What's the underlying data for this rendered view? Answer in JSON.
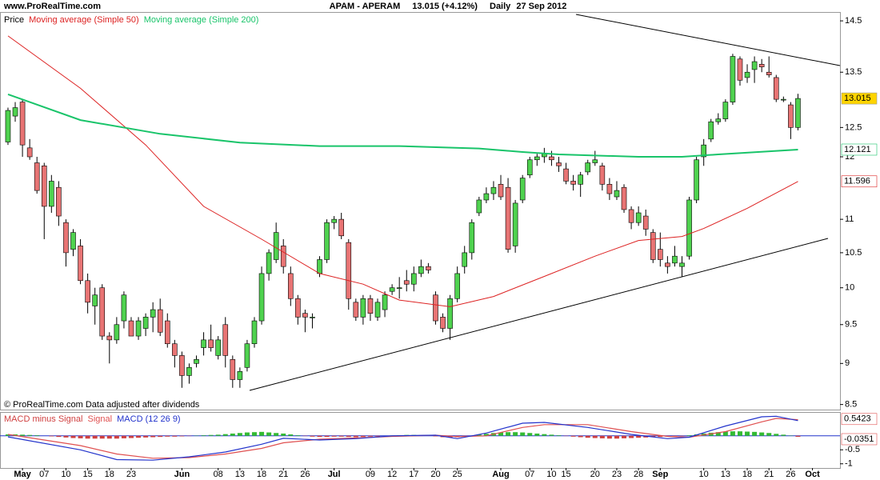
{
  "header": {
    "site": "www.ProRealTime.com",
    "title": "APAM - APERAM",
    "quote": "13.015 (+4.12%)",
    "period": "Daily",
    "date": "27 Sep 2012"
  },
  "footer": "© ProRealTime.com  Data adjusted after dividends",
  "chart_data": [
    {
      "type": "candlestick",
      "legend_label": "Price",
      "log_scale": true,
      "up_color": "#4fd24f",
      "down_color": "#e87474",
      "xlim": [
        -1.1,
        114.8
      ],
      "ylim": [
        8.44,
        14.68
      ],
      "yticks": [
        8.5,
        9,
        9.5,
        10,
        10.5,
        11,
        12,
        12.5,
        13.5,
        14.5
      ],
      "candles": [
        [
          12.25,
          12.85,
          12.2,
          12.8
        ],
        [
          12.7,
          12.95,
          12.6,
          12.85
        ],
        [
          12.95,
          13.0,
          12.0,
          12.2
        ],
        [
          12.15,
          12.3,
          11.95,
          12.0
        ],
        [
          11.9,
          12.0,
          11.4,
          11.45
        ],
        [
          11.85,
          11.9,
          10.7,
          11.2
        ],
        [
          11.2,
          11.7,
          11.1,
          11.6
        ],
        [
          11.5,
          11.6,
          10.9,
          11.05
        ],
        [
          10.95,
          11.0,
          10.3,
          10.5
        ],
        [
          10.55,
          10.85,
          10.45,
          10.8
        ],
        [
          10.6,
          10.7,
          10.05,
          10.1
        ],
        [
          10.1,
          10.2,
          9.65,
          9.8
        ],
        [
          9.75,
          10.0,
          9.5,
          9.9
        ],
        [
          10.0,
          10.05,
          9.3,
          9.35
        ],
        [
          9.35,
          9.4,
          9.0,
          9.3
        ],
        [
          9.3,
          9.6,
          9.25,
          9.5
        ],
        [
          9.55,
          9.95,
          9.45,
          9.9
        ],
        [
          9.55,
          9.6,
          9.35,
          9.35
        ],
        [
          9.35,
          9.6,
          9.3,
          9.55
        ],
        [
          9.45,
          9.65,
          9.35,
          9.6
        ],
        [
          9.6,
          9.8,
          9.4,
          9.7
        ],
        [
          9.7,
          9.85,
          9.35,
          9.4
        ],
        [
          9.55,
          9.65,
          9.2,
          9.25
        ],
        [
          9.25,
          9.3,
          8.95,
          9.1
        ],
        [
          9.1,
          9.15,
          8.7,
          8.85
        ],
        [
          8.85,
          9.0,
          8.75,
          8.95
        ],
        [
          9.0,
          9.1,
          8.95,
          9.05
        ],
        [
          9.2,
          9.4,
          9.1,
          9.3
        ],
        [
          9.3,
          9.5,
          9.15,
          9.2
        ],
        [
          9.1,
          9.35,
          9.05,
          9.3
        ],
        [
          9.5,
          9.6,
          8.95,
          9.1
        ],
        [
          9.05,
          9.1,
          8.7,
          8.8
        ],
        [
          8.8,
          8.95,
          8.7,
          8.9
        ],
        [
          8.95,
          9.3,
          8.9,
          9.25
        ],
        [
          9.25,
          9.6,
          9.2,
          9.55
        ],
        [
          9.55,
          10.3,
          9.5,
          10.2
        ],
        [
          10.2,
          10.55,
          10.1,
          10.5
        ],
        [
          10.4,
          10.95,
          10.35,
          10.8
        ],
        [
          10.6,
          10.7,
          10.2,
          10.3
        ],
        [
          10.2,
          10.3,
          9.75,
          9.85
        ],
        [
          9.85,
          9.9,
          9.5,
          9.6
        ],
        [
          9.65,
          9.7,
          9.4,
          9.6
        ],
        [
          9.6,
          9.65,
          9.45,
          9.6
        ],
        [
          10.2,
          10.45,
          10.15,
          10.4
        ],
        [
          10.4,
          11.0,
          10.35,
          10.95
        ],
        [
          10.95,
          11.05,
          10.85,
          11.0
        ],
        [
          11.0,
          11.1,
          10.7,
          10.75
        ],
        [
          10.65,
          10.7,
          9.7,
          9.85
        ],
        [
          9.8,
          9.85,
          9.55,
          9.6
        ],
        [
          9.6,
          9.9,
          9.5,
          9.85
        ],
        [
          9.85,
          9.9,
          9.55,
          9.65
        ],
        [
          9.6,
          9.85,
          9.55,
          9.8
        ],
        [
          9.7,
          9.95,
          9.6,
          9.9
        ],
        [
          9.95,
          10.05,
          9.9,
          10.0
        ],
        [
          10.0,
          10.15,
          9.85,
          10.0
        ],
        [
          10.1,
          10.25,
          9.95,
          10.05
        ],
        [
          10.05,
          10.3,
          9.95,
          10.2
        ],
        [
          10.2,
          10.4,
          10.15,
          10.3
        ],
        [
          10.3,
          10.35,
          10.2,
          10.25
        ],
        [
          9.9,
          9.95,
          9.5,
          9.55
        ],
        [
          9.6,
          9.65,
          9.4,
          9.45
        ],
        [
          9.45,
          9.9,
          9.3,
          9.85
        ],
        [
          9.85,
          10.3,
          9.8,
          10.2
        ],
        [
          10.3,
          10.6,
          10.2,
          10.5
        ],
        [
          10.5,
          11.0,
          10.4,
          10.95
        ],
        [
          11.1,
          11.35,
          11.05,
          11.3
        ],
        [
          11.3,
          11.5,
          11.25,
          11.4
        ],
        [
          11.4,
          11.6,
          11.3,
          11.5
        ],
        [
          11.55,
          11.7,
          11.3,
          11.35
        ],
        [
          11.5,
          11.65,
          10.5,
          10.55
        ],
        [
          10.6,
          11.3,
          10.5,
          11.25
        ],
        [
          11.3,
          11.7,
          11.25,
          11.65
        ],
        [
          11.7,
          12.0,
          11.65,
          11.95
        ],
        [
          11.95,
          12.05,
          11.85,
          12.0
        ],
        [
          12.0,
          12.15,
          11.9,
          12.05
        ],
        [
          12.0,
          12.1,
          11.85,
          11.95
        ],
        [
          11.9,
          12.0,
          11.75,
          11.85
        ],
        [
          11.8,
          11.9,
          11.55,
          11.6
        ],
        [
          11.6,
          11.7,
          11.45,
          11.55
        ],
        [
          11.55,
          11.75,
          11.35,
          11.7
        ],
        [
          11.75,
          11.95,
          11.7,
          11.9
        ],
        [
          11.9,
          12.1,
          11.85,
          11.95
        ],
        [
          11.85,
          11.9,
          11.45,
          11.55
        ],
        [
          11.55,
          11.65,
          11.3,
          11.4
        ],
        [
          11.35,
          11.6,
          11.3,
          11.45
        ],
        [
          11.5,
          11.55,
          11.1,
          11.15
        ],
        [
          11.15,
          11.2,
          10.85,
          10.95
        ],
        [
          10.95,
          11.2,
          10.9,
          11.1
        ],
        [
          11.05,
          11.15,
          10.75,
          10.85
        ],
        [
          10.8,
          10.85,
          10.35,
          10.4
        ],
        [
          10.55,
          10.8,
          10.3,
          10.4
        ],
        [
          10.35,
          10.45,
          10.2,
          10.3
        ],
        [
          10.35,
          10.6,
          10.3,
          10.45
        ],
        [
          10.3,
          10.45,
          10.15,
          10.35
        ],
        [
          10.45,
          11.35,
          10.4,
          11.3
        ],
        [
          11.3,
          12.0,
          11.25,
          11.95
        ],
        [
          12.0,
          12.3,
          11.85,
          12.2
        ],
        [
          12.3,
          12.65,
          12.25,
          12.6
        ],
        [
          12.6,
          12.75,
          12.55,
          12.65
        ],
        [
          12.65,
          13.0,
          12.6,
          12.95
        ],
        [
          12.95,
          13.85,
          12.9,
          13.8
        ],
        [
          13.75,
          13.8,
          13.25,
          13.35
        ],
        [
          13.4,
          13.65,
          13.3,
          13.5
        ],
        [
          13.55,
          13.8,
          13.3,
          13.7
        ],
        [
          13.65,
          13.75,
          13.5,
          13.6
        ],
        [
          13.5,
          13.8,
          13.4,
          13.45
        ],
        [
          13.4,
          13.45,
          12.95,
          13.0
        ],
        [
          13.0,
          13.05,
          12.95,
          13.0
        ],
        [
          12.9,
          12.95,
          12.3,
          12.5
        ],
        [
          12.5,
          13.1,
          12.45,
          13.015
        ]
      ],
      "series": [
        {
          "name": "Moving average (Simple 50)",
          "color": "#dd2222",
          "x": [
            0,
            10,
            19,
            27,
            35,
            43,
            49,
            54,
            61,
            67,
            74,
            81,
            87,
            93,
            96,
            102,
            109
          ],
          "values": [
            14.2,
            13.2,
            12.2,
            11.2,
            10.7,
            10.2,
            10.05,
            9.83,
            9.74,
            9.88,
            10.16,
            10.45,
            10.68,
            10.74,
            10.86,
            11.17,
            11.596
          ]
        },
        {
          "name": "Moving average (Simple 200)",
          "color": "#19c46a",
          "x": [
            0,
            10,
            21,
            32,
            43,
            54,
            65,
            71,
            76,
            87,
            93,
            98,
            109
          ],
          "values": [
            13.09,
            12.63,
            12.39,
            12.24,
            12.18,
            12.18,
            12.14,
            12.08,
            12.04,
            12.0,
            12.0,
            12.04,
            12.121
          ]
        }
      ]
    },
    {
      "type": "macd",
      "xlim": [
        -1.1,
        114.8
      ],
      "ylim": [
        -1.15,
        0.85
      ],
      "yticks": [
        -1,
        -0.5
      ],
      "histogram_name": "MACD minus Signal",
      "pos_color": "#33bb33",
      "neg_color": "#d04040",
      "histogram": [
        0.05,
        0.05,
        0.04,
        0.03,
        0.02,
        0.0,
        -0.02,
        -0.04,
        -0.06,
        -0.08,
        -0.09,
        -0.1,
        -0.1,
        -0.1,
        -0.1,
        -0.1,
        -0.09,
        -0.08,
        -0.07,
        -0.06,
        -0.05,
        -0.04,
        -0.03,
        -0.03,
        -0.02,
        -0.01,
        0.01,
        0.02,
        0.03,
        0.04,
        0.06,
        0.08,
        0.1,
        0.12,
        0.13,
        0.14,
        0.12,
        0.1,
        0.08,
        0.05,
        0.02,
        -0.01,
        -0.03,
        -0.04,
        -0.04,
        -0.03,
        -0.03,
        -0.04,
        -0.05,
        -0.04,
        -0.03,
        -0.02,
        0.0,
        0.01,
        0.02,
        0.03,
        0.03,
        0.02,
        0.01,
        -0.02,
        -0.05,
        -0.06,
        -0.05,
        -0.03,
        0.0,
        0.04,
        0.07,
        0.1,
        0.12,
        0.13,
        0.13,
        0.12,
        0.1,
        0.08,
        0.06,
        0.04,
        0.02,
        -0.01,
        -0.03,
        -0.05,
        -0.07,
        -0.08,
        -0.09,
        -0.1,
        -0.1,
        -0.09,
        -0.08,
        -0.07,
        -0.06,
        -0.05,
        -0.04,
        -0.03,
        -0.02,
        -0.01,
        0.02,
        0.05,
        0.08,
        0.11,
        0.13,
        0.15,
        0.16,
        0.16,
        0.15,
        0.14,
        0.12,
        0.1,
        0.07,
        0.04,
        0.01,
        -0.0351
      ],
      "series": [
        {
          "name": "Signal",
          "color": "#e05050",
          "x": [
            0,
            10,
            15,
            20,
            25,
            30,
            35,
            38,
            43,
            48,
            53,
            59,
            62,
            66,
            71,
            74,
            80,
            86,
            91,
            94,
            99,
            104,
            106,
            109
          ],
          "values": [
            0.05,
            -0.35,
            -0.65,
            -0.8,
            -0.78,
            -0.65,
            -0.45,
            -0.25,
            -0.12,
            -0.08,
            -0.02,
            0.02,
            -0.03,
            0.0,
            0.3,
            0.4,
            0.4,
            0.15,
            -0.02,
            -0.05,
            0.15,
            0.5,
            0.62,
            0.577
          ]
        },
        {
          "name": "MACD (12 26 9)",
          "color": "#2233cc",
          "x": [
            0,
            10,
            15,
            20,
            25,
            30,
            35,
            38,
            43,
            48,
            53,
            59,
            62,
            66,
            71,
            74,
            80,
            86,
            91,
            94,
            99,
            104,
            106,
            109
          ],
          "values": [
            -0.04,
            -0.5,
            -0.85,
            -0.87,
            -0.75,
            -0.58,
            -0.3,
            -0.09,
            -0.15,
            -0.1,
            0.0,
            0.02,
            -0.1,
            0.1,
            0.45,
            0.48,
            0.3,
            0.05,
            -0.1,
            -0.05,
            0.35,
            0.68,
            0.7,
            0.5423
          ]
        }
      ],
      "xticks": [
        {
          "value": 2,
          "label": "May"
        },
        {
          "value": 5,
          "label": "07"
        },
        {
          "value": 8,
          "label": "10"
        },
        {
          "value": 11,
          "label": "15"
        },
        {
          "value": 14,
          "label": "18"
        },
        {
          "value": 17,
          "label": "23"
        },
        {
          "value": 24,
          "label": "Jun"
        },
        {
          "value": 29,
          "label": "08"
        },
        {
          "value": 32,
          "label": "13"
        },
        {
          "value": 35,
          "label": "18"
        },
        {
          "value": 38,
          "label": "21"
        },
        {
          "value": 41,
          "label": "26"
        },
        {
          "value": 45,
          "label": "Jul"
        },
        {
          "value": 50,
          "label": "09"
        },
        {
          "value": 53,
          "label": "12"
        },
        {
          "value": 56,
          "label": "17"
        },
        {
          "value": 59,
          "label": "20"
        },
        {
          "value": 62,
          "label": "25"
        },
        {
          "value": 68,
          "label": "Aug"
        },
        {
          "value": 72,
          "label": "07"
        },
        {
          "value": 75,
          "label": "10"
        },
        {
          "value": 77,
          "label": "15"
        },
        {
          "value": 81,
          "label": "20"
        },
        {
          "value": 84,
          "label": "23"
        },
        {
          "value": 87,
          "label": "28"
        },
        {
          "value": 90,
          "label": "Sep"
        },
        {
          "value": 96,
          "label": "10"
        },
        {
          "value": 99,
          "label": "13"
        },
        {
          "value": 102,
          "label": "18"
        },
        {
          "value": 105,
          "label": "21"
        },
        {
          "value": 108,
          "label": "26"
        },
        {
          "value": 111,
          "label": "Oct"
        }
      ]
    }
  ]
}
